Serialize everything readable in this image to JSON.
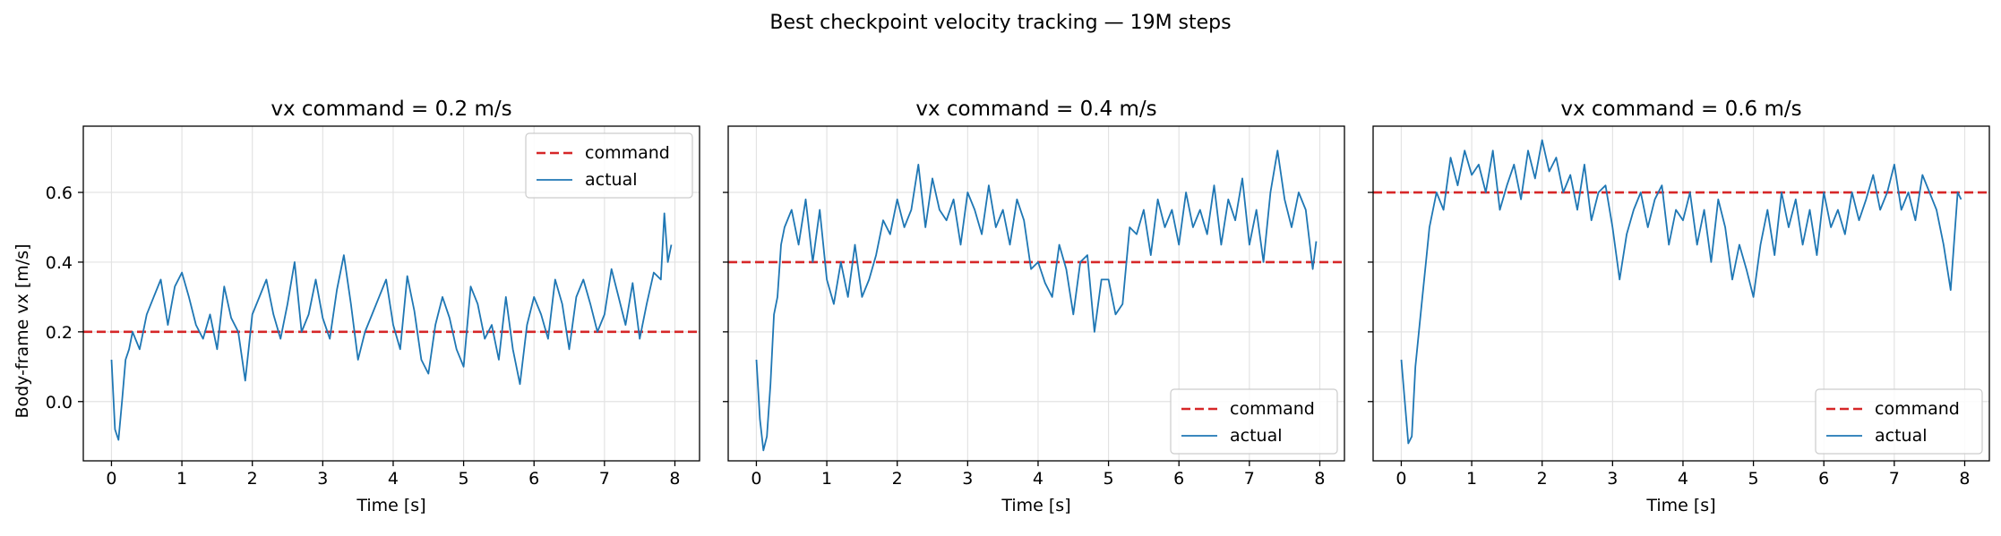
{
  "figure": {
    "suptitle": "Best checkpoint velocity tracking — 19M steps",
    "ylabel": "Body-frame vx [m/s]",
    "legend_labels": [
      "command",
      "actual"
    ]
  },
  "chart_data": [
    {
      "type": "line",
      "title": "vx command = 0.2 m/s",
      "xlabel": "Time [s]",
      "ylabel": "Body-frame vx [m/s]",
      "xlim": [
        -0.4,
        8.35
      ],
      "ylim": [
        -0.17,
        0.79
      ],
      "xticks": [
        0,
        1,
        2,
        3,
        4,
        5,
        6,
        7,
        8
      ],
      "yticks": [
        0.0,
        0.2,
        0.4,
        0.6
      ],
      "ytick_labels": [
        "0.0",
        "0.2",
        "0.4",
        "0.6"
      ],
      "grid": true,
      "legend_position": "upper right",
      "command": {
        "name": "command",
        "value": 0.2,
        "color": "#d62728",
        "style": "dashed"
      },
      "series": [
        {
          "name": "actual",
          "color": "#1f77b4",
          "x": [
            0.0,
            0.05,
            0.1,
            0.15,
            0.2,
            0.25,
            0.3,
            0.4,
            0.5,
            0.6,
            0.7,
            0.8,
            0.9,
            1.0,
            1.1,
            1.2,
            1.3,
            1.4,
            1.5,
            1.6,
            1.7,
            1.8,
            1.9,
            2.0,
            2.1,
            2.2,
            2.3,
            2.4,
            2.5,
            2.6,
            2.7,
            2.8,
            2.9,
            3.0,
            3.1,
            3.2,
            3.3,
            3.4,
            3.5,
            3.6,
            3.7,
            3.8,
            3.9,
            4.0,
            4.1,
            4.2,
            4.3,
            4.4,
            4.5,
            4.6,
            4.7,
            4.8,
            4.9,
            5.0,
            5.1,
            5.2,
            5.3,
            5.4,
            5.5,
            5.6,
            5.7,
            5.8,
            5.9,
            6.0,
            6.1,
            6.2,
            6.3,
            6.4,
            6.5,
            6.6,
            6.7,
            6.8,
            6.9,
            7.0,
            7.1,
            7.2,
            7.3,
            7.4,
            7.5,
            7.6,
            7.7,
            7.8,
            7.85,
            7.9,
            7.95
          ],
          "y": [
            0.12,
            -0.08,
            -0.11,
            0.0,
            0.12,
            0.15,
            0.2,
            0.15,
            0.25,
            0.3,
            0.35,
            0.22,
            0.33,
            0.37,
            0.3,
            0.22,
            0.18,
            0.25,
            0.15,
            0.33,
            0.24,
            0.2,
            0.06,
            0.25,
            0.3,
            0.35,
            0.25,
            0.18,
            0.28,
            0.4,
            0.2,
            0.25,
            0.35,
            0.24,
            0.18,
            0.32,
            0.42,
            0.28,
            0.12,
            0.2,
            0.25,
            0.3,
            0.35,
            0.22,
            0.15,
            0.36,
            0.26,
            0.12,
            0.08,
            0.22,
            0.3,
            0.24,
            0.15,
            0.1,
            0.33,
            0.28,
            0.18,
            0.22,
            0.12,
            0.3,
            0.15,
            0.05,
            0.22,
            0.3,
            0.25,
            0.18,
            0.35,
            0.28,
            0.15,
            0.3,
            0.35,
            0.28,
            0.2,
            0.25,
            0.38,
            0.3,
            0.22,
            0.34,
            0.18,
            0.28,
            0.37,
            0.35,
            0.54,
            0.4,
            0.45
          ]
        }
      ]
    },
    {
      "type": "line",
      "title": "vx command = 0.4 m/s",
      "xlabel": "Time [s]",
      "ylabel": "",
      "xlim": [
        -0.4,
        8.35
      ],
      "ylim": [
        -0.17,
        0.79
      ],
      "xticks": [
        0,
        1,
        2,
        3,
        4,
        5,
        6,
        7,
        8
      ],
      "yticks": [
        0.0,
        0.2,
        0.4,
        0.6
      ],
      "grid": true,
      "legend_position": "lower right",
      "command": {
        "name": "command",
        "value": 0.4,
        "color": "#d62728",
        "style": "dashed"
      },
      "series": [
        {
          "name": "actual",
          "color": "#1f77b4",
          "x": [
            0.0,
            0.05,
            0.1,
            0.15,
            0.2,
            0.25,
            0.3,
            0.35,
            0.4,
            0.5,
            0.6,
            0.7,
            0.8,
            0.9,
            1.0,
            1.1,
            1.2,
            1.3,
            1.4,
            1.5,
            1.6,
            1.7,
            1.8,
            1.9,
            2.0,
            2.1,
            2.2,
            2.3,
            2.4,
            2.5,
            2.6,
            2.7,
            2.8,
            2.9,
            3.0,
            3.1,
            3.2,
            3.3,
            3.4,
            3.5,
            3.6,
            3.7,
            3.8,
            3.9,
            4.0,
            4.1,
            4.2,
            4.3,
            4.4,
            4.5,
            4.6,
            4.7,
            4.8,
            4.9,
            5.0,
            5.1,
            5.2,
            5.3,
            5.4,
            5.5,
            5.6,
            5.7,
            5.8,
            5.9,
            6.0,
            6.1,
            6.2,
            6.3,
            6.4,
            6.5,
            6.6,
            6.7,
            6.8,
            6.9,
            7.0,
            7.1,
            7.2,
            7.3,
            7.4,
            7.5,
            7.6,
            7.7,
            7.8,
            7.9,
            7.95
          ],
          "y": [
            0.12,
            -0.05,
            -0.14,
            -0.1,
            0.05,
            0.25,
            0.3,
            0.45,
            0.5,
            0.55,
            0.45,
            0.58,
            0.4,
            0.55,
            0.35,
            0.28,
            0.4,
            0.3,
            0.45,
            0.3,
            0.35,
            0.42,
            0.52,
            0.48,
            0.58,
            0.5,
            0.55,
            0.68,
            0.5,
            0.64,
            0.55,
            0.52,
            0.58,
            0.45,
            0.6,
            0.55,
            0.48,
            0.62,
            0.5,
            0.55,
            0.45,
            0.58,
            0.52,
            0.38,
            0.4,
            0.34,
            0.3,
            0.45,
            0.38,
            0.25,
            0.4,
            0.42,
            0.2,
            0.35,
            0.35,
            0.25,
            0.28,
            0.5,
            0.48,
            0.55,
            0.42,
            0.58,
            0.5,
            0.55,
            0.45,
            0.6,
            0.5,
            0.55,
            0.48,
            0.62,
            0.45,
            0.58,
            0.52,
            0.64,
            0.45,
            0.55,
            0.4,
            0.6,
            0.72,
            0.58,
            0.5,
            0.6,
            0.55,
            0.38,
            0.46
          ]
        }
      ]
    },
    {
      "type": "line",
      "title": "vx command = 0.6 m/s",
      "xlabel": "Time [s]",
      "ylabel": "",
      "xlim": [
        -0.4,
        8.35
      ],
      "ylim": [
        -0.17,
        0.79
      ],
      "xticks": [
        0,
        1,
        2,
        3,
        4,
        5,
        6,
        7,
        8
      ],
      "yticks": [
        0.0,
        0.2,
        0.4,
        0.6
      ],
      "grid": true,
      "legend_position": "lower right",
      "command": {
        "name": "command",
        "value": 0.6,
        "color": "#d62728",
        "style": "dashed"
      },
      "series": [
        {
          "name": "actual",
          "color": "#1f77b4",
          "x": [
            0.0,
            0.05,
            0.1,
            0.15,
            0.2,
            0.25,
            0.3,
            0.35,
            0.4,
            0.5,
            0.6,
            0.7,
            0.8,
            0.9,
            1.0,
            1.1,
            1.2,
            1.3,
            1.4,
            1.5,
            1.6,
            1.7,
            1.8,
            1.9,
            2.0,
            2.1,
            2.2,
            2.3,
            2.4,
            2.5,
            2.6,
            2.7,
            2.8,
            2.9,
            3.0,
            3.1,
            3.2,
            3.3,
            3.4,
            3.5,
            3.6,
            3.7,
            3.8,
            3.9,
            4.0,
            4.1,
            4.2,
            4.3,
            4.4,
            4.5,
            4.6,
            4.7,
            4.8,
            4.9,
            5.0,
            5.1,
            5.2,
            5.3,
            5.4,
            5.5,
            5.6,
            5.7,
            5.8,
            5.9,
            6.0,
            6.1,
            6.2,
            6.3,
            6.4,
            6.5,
            6.6,
            6.7,
            6.8,
            6.9,
            7.0,
            7.1,
            7.2,
            7.3,
            7.4,
            7.5,
            7.6,
            7.7,
            7.8,
            7.9,
            7.95
          ],
          "y": [
            0.12,
            0.0,
            -0.12,
            -0.1,
            0.1,
            0.2,
            0.3,
            0.4,
            0.5,
            0.6,
            0.55,
            0.7,
            0.62,
            0.72,
            0.65,
            0.68,
            0.6,
            0.72,
            0.55,
            0.62,
            0.68,
            0.58,
            0.72,
            0.64,
            0.75,
            0.66,
            0.7,
            0.6,
            0.65,
            0.55,
            0.68,
            0.52,
            0.6,
            0.62,
            0.5,
            0.35,
            0.48,
            0.55,
            0.6,
            0.5,
            0.58,
            0.62,
            0.45,
            0.55,
            0.52,
            0.6,
            0.45,
            0.55,
            0.4,
            0.58,
            0.5,
            0.35,
            0.45,
            0.38,
            0.3,
            0.45,
            0.55,
            0.42,
            0.6,
            0.5,
            0.58,
            0.45,
            0.55,
            0.42,
            0.6,
            0.5,
            0.55,
            0.48,
            0.6,
            0.52,
            0.58,
            0.65,
            0.55,
            0.6,
            0.68,
            0.55,
            0.6,
            0.52,
            0.65,
            0.6,
            0.55,
            0.45,
            0.32,
            0.6,
            0.58
          ]
        }
      ]
    }
  ]
}
